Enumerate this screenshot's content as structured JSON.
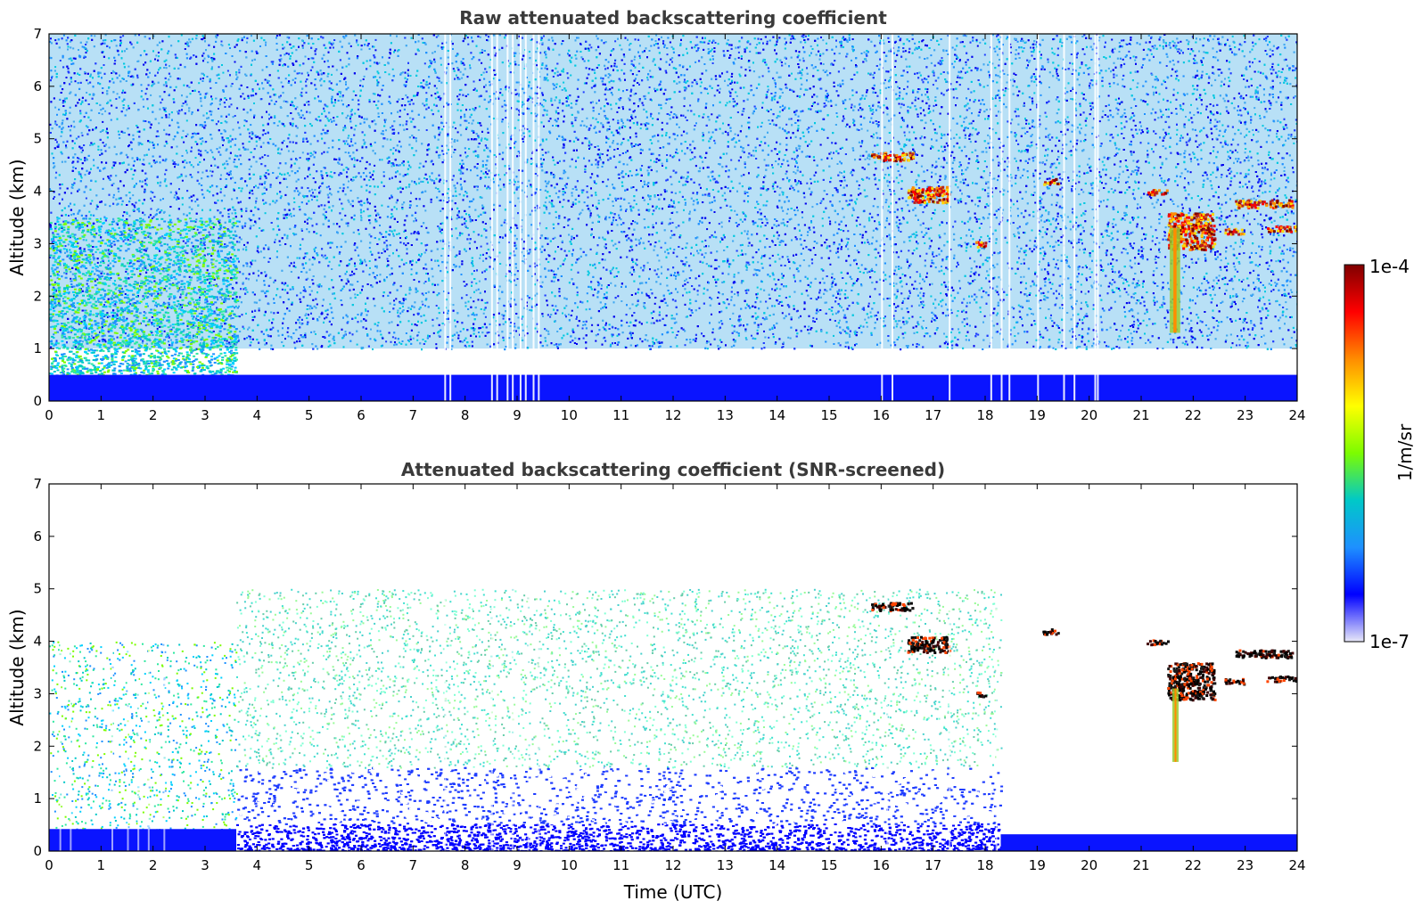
{
  "chart_data": [
    {
      "type": "heatmap",
      "title": "Raw attenuated backscattering coefficient",
      "xlabel": "",
      "ylabel": "Altitude (km)",
      "xlim": [
        0,
        24
      ],
      "ylim": [
        0,
        7
      ],
      "xticks": [
        "0",
        "1",
        "2",
        "3",
        "4",
        "5",
        "6",
        "7",
        "8",
        "9",
        "10",
        "11",
        "12",
        "13",
        "14",
        "15",
        "16",
        "17",
        "18",
        "19",
        "20",
        "21",
        "22",
        "23",
        "24"
      ],
      "yticks": [
        "0",
        "1",
        "2",
        "3",
        "4",
        "5",
        "6",
        "7"
      ],
      "color_scale": "log",
      "features": [
        {
          "kind": "noise_field",
          "x": [
            0,
            24
          ],
          "y": [
            1,
            7
          ],
          "level": "low"
        },
        {
          "kind": "boundary_layer",
          "x": [
            0,
            3.6
          ],
          "y": [
            0,
            3.5
          ],
          "level": "moderate"
        },
        {
          "kind": "near_surface_layer",
          "x": [
            0,
            24
          ],
          "y": [
            0,
            0.5
          ],
          "level": "low"
        },
        {
          "kind": "cloud",
          "x": [
            15.8,
            16.6
          ],
          "y": [
            4.6,
            4.75
          ],
          "level": "high"
        },
        {
          "kind": "cloud",
          "x": [
            16.5,
            17.3
          ],
          "y": [
            3.8,
            4.1
          ],
          "level": "high"
        },
        {
          "kind": "cloud",
          "x": [
            17.8,
            18.0
          ],
          "y": [
            2.95,
            3.05
          ],
          "level": "high"
        },
        {
          "kind": "cloud",
          "x": [
            19.1,
            19.4
          ],
          "y": [
            4.15,
            4.25
          ],
          "level": "high"
        },
        {
          "kind": "cloud",
          "x": [
            21.1,
            21.5
          ],
          "y": [
            3.95,
            4.05
          ],
          "level": "high"
        },
        {
          "kind": "cloud",
          "x": [
            21.5,
            22.4
          ],
          "y": [
            2.9,
            3.6
          ],
          "level": "high"
        },
        {
          "kind": "cloud",
          "x": [
            22.6,
            23.0
          ],
          "y": [
            3.2,
            3.3
          ],
          "level": "high"
        },
        {
          "kind": "cloud",
          "x": [
            22.8,
            23.9
          ],
          "y": [
            3.7,
            3.85
          ],
          "level": "high"
        },
        {
          "kind": "cloud",
          "x": [
            23.4,
            24.0
          ],
          "y": [
            3.25,
            3.35
          ],
          "level": "high"
        },
        {
          "kind": "precipitation",
          "x": [
            21.55,
            21.75
          ],
          "y": [
            1.3,
            3.3
          ],
          "level": "moderate"
        }
      ]
    },
    {
      "type": "heatmap",
      "title": "Attenuated backscattering coefficient (SNR-screened)",
      "xlabel": "Time (UTC)",
      "ylabel": "Altitude (km)",
      "xlim": [
        0,
        24
      ],
      "ylim": [
        0,
        7
      ],
      "xticks": [
        "0",
        "1",
        "2",
        "3",
        "4",
        "5",
        "6",
        "7",
        "8",
        "9",
        "10",
        "11",
        "12",
        "13",
        "14",
        "15",
        "16",
        "17",
        "18",
        "19",
        "20",
        "21",
        "22",
        "23",
        "24"
      ],
      "yticks": [
        "0",
        "1",
        "2",
        "3",
        "4",
        "5",
        "6",
        "7"
      ],
      "color_scale": "log",
      "features": [
        {
          "kind": "aerosol_field",
          "x": [
            0,
            3.6
          ],
          "y": [
            0.4,
            4.0
          ],
          "level": "moderate"
        },
        {
          "kind": "aerosol_field",
          "x": [
            3.6,
            18.3
          ],
          "y": [
            1.6,
            5.0
          ],
          "level": "low"
        },
        {
          "kind": "boundary_layer",
          "x": [
            3.6,
            18.3
          ],
          "y": [
            0,
            1.6
          ],
          "level": "low"
        },
        {
          "kind": "near_surface_layer",
          "x": [
            0,
            3.6
          ],
          "y": [
            0,
            0.42
          ],
          "level": "low"
        },
        {
          "kind": "near_surface_layer",
          "x": [
            18.3,
            24
          ],
          "y": [
            0,
            0.32
          ],
          "level": "low"
        },
        {
          "kind": "cloud",
          "x": [
            15.8,
            16.6
          ],
          "y": [
            4.6,
            4.75
          ],
          "level": "saturated"
        },
        {
          "kind": "cloud",
          "x": [
            16.5,
            17.3
          ],
          "y": [
            3.8,
            4.1
          ],
          "level": "saturated"
        },
        {
          "kind": "cloud",
          "x": [
            17.8,
            18.0
          ],
          "y": [
            2.95,
            3.05
          ],
          "level": "saturated"
        },
        {
          "kind": "cloud",
          "x": [
            19.1,
            19.4
          ],
          "y": [
            4.15,
            4.25
          ],
          "level": "saturated"
        },
        {
          "kind": "cloud",
          "x": [
            21.1,
            21.5
          ],
          "y": [
            3.95,
            4.05
          ],
          "level": "saturated"
        },
        {
          "kind": "cloud",
          "x": [
            21.5,
            22.4
          ],
          "y": [
            2.9,
            3.6
          ],
          "level": "saturated"
        },
        {
          "kind": "cloud",
          "x": [
            22.6,
            23.0
          ],
          "y": [
            3.2,
            3.3
          ],
          "level": "saturated"
        },
        {
          "kind": "cloud",
          "x": [
            22.8,
            23.9
          ],
          "y": [
            3.7,
            3.85
          ],
          "level": "saturated"
        },
        {
          "kind": "cloud",
          "x": [
            23.4,
            24.0
          ],
          "y": [
            3.25,
            3.35
          ],
          "level": "saturated"
        },
        {
          "kind": "precipitation",
          "x": [
            21.6,
            21.72
          ],
          "y": [
            1.7,
            3.1
          ],
          "level": "moderate"
        }
      ]
    }
  ],
  "colorbar": {
    "label": "1/m/sr",
    "max_label": "1e-4",
    "min_label": "1e-7",
    "stops": [
      "#e8e8f8",
      "#0000ff",
      "#1e90ff",
      "#00c8c8",
      "#7cfc00",
      "#ffff00",
      "#ff8c00",
      "#ff0000",
      "#800000"
    ]
  }
}
